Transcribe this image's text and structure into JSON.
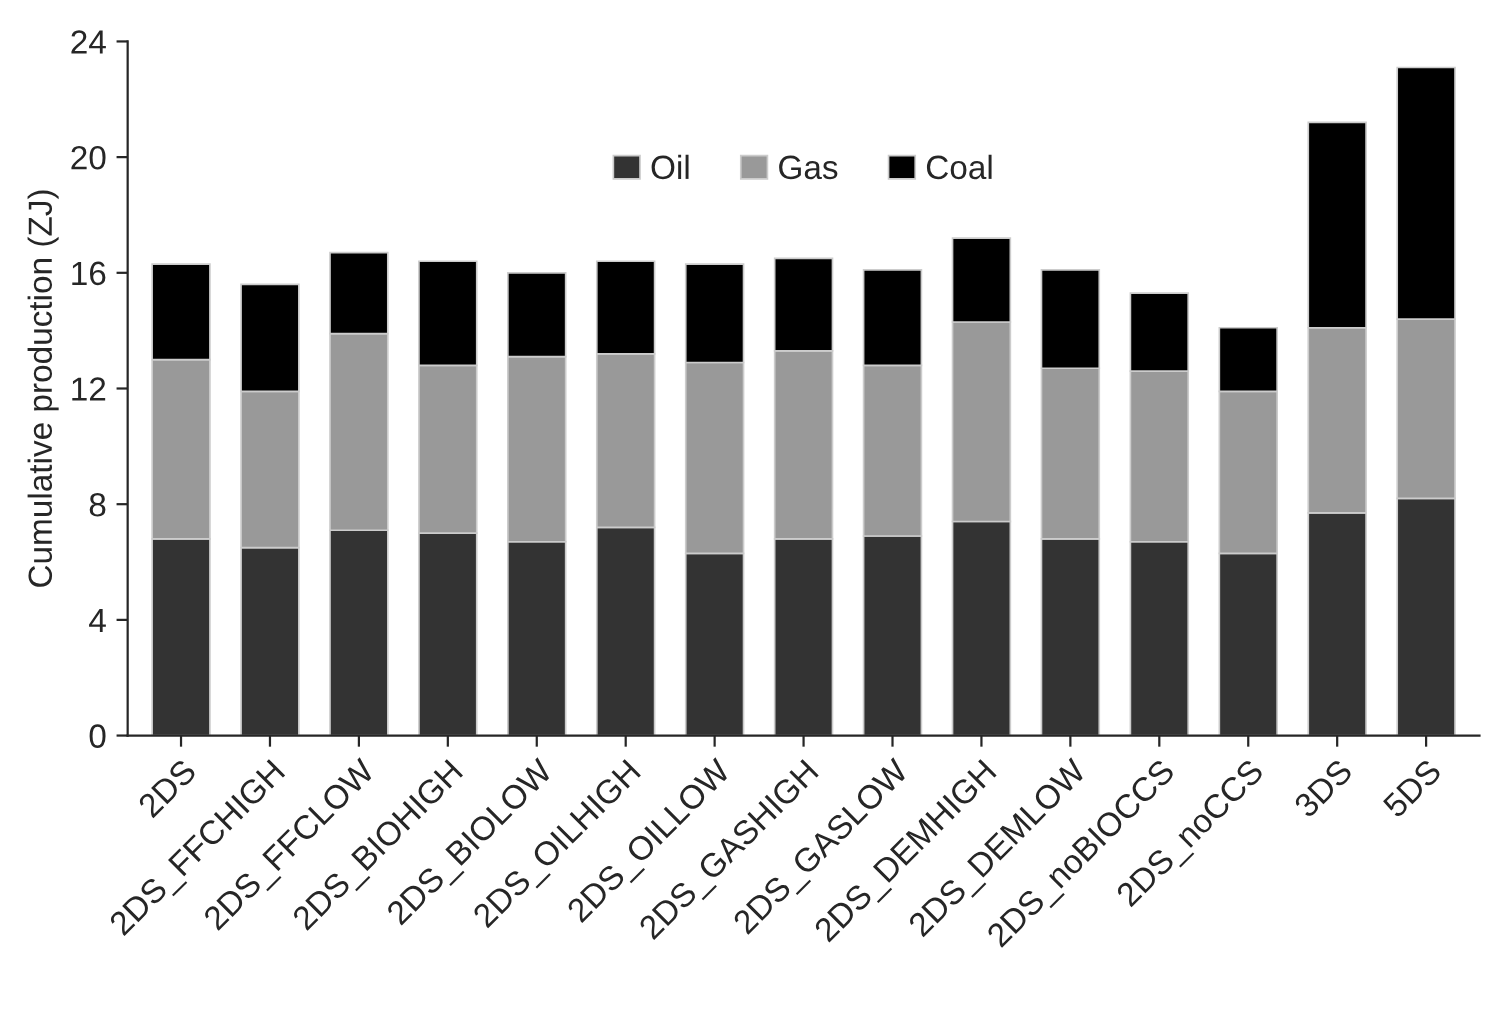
{
  "chart_data": {
    "type": "bar",
    "stacked": true,
    "ylabel": "Cumulative production (ZJ)",
    "categories": [
      "2DS",
      "2DS_FFCHIGH",
      "2DS_FFCLOW",
      "2DS_BIOHIGH",
      "2DS_BIOLOW",
      "2DS_OILHIGH",
      "2DS_OILLOW",
      "2DS_GASHIGH",
      "2DS_GASLOW",
      "2DS_DEMHIGH",
      "2DS_DEMLOW",
      "2DS_noBIOCCS",
      "2DS_noCCS",
      "3DS",
      "5DS"
    ],
    "series": [
      {
        "name": "Oil",
        "color": "#333333",
        "values": [
          6.8,
          6.5,
          7.1,
          7.0,
          6.7,
          7.2,
          6.3,
          6.8,
          6.9,
          7.4,
          6.8,
          6.7,
          6.3,
          7.7,
          8.2
        ]
      },
      {
        "name": "Gas",
        "color": "#999999",
        "values": [
          6.2,
          5.4,
          6.8,
          5.8,
          6.4,
          6.0,
          6.6,
          6.5,
          5.9,
          6.9,
          5.9,
          5.9,
          5.6,
          6.4,
          6.2
        ]
      },
      {
        "name": "Coal",
        "color": "#000000",
        "values": [
          3.3,
          3.7,
          2.8,
          3.6,
          2.9,
          3.2,
          3.4,
          3.2,
          3.3,
          2.9,
          3.4,
          2.7,
          2.2,
          7.1,
          8.7
        ]
      }
    ],
    "ylim": [
      0,
      24
    ],
    "yticks": [
      0,
      4,
      8,
      12,
      16,
      20,
      24
    ],
    "grid": false,
    "legend": "top"
  }
}
